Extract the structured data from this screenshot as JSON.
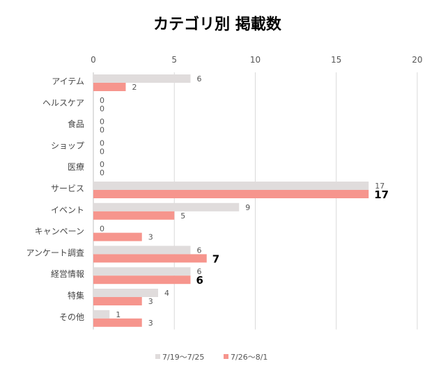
{
  "chart_data": {
    "type": "bar",
    "orientation": "horizontal",
    "title": "カテゴリ別 掲載数",
    "xlim": [
      0,
      20
    ],
    "xticks": [
      0,
      5,
      10,
      15,
      20
    ],
    "grid": true,
    "legend_position": "bottom",
    "categories": [
      "アイテム",
      "ヘルスケア",
      "食品",
      "ショップ",
      "医療",
      "サービス",
      "イベント",
      "キャンペーン",
      "アンケート調査",
      "経営情報",
      "特集",
      "その他"
    ],
    "series": [
      {
        "name": "7/19〜7/25",
        "color": "#e0dcdc",
        "values": [
          6,
          0,
          0,
          0,
          0,
          17,
          9,
          0,
          6,
          6,
          4,
          1
        ]
      },
      {
        "name": "7/26〜8/1",
        "color": "#f6958d",
        "values": [
          2,
          0,
          0,
          0,
          0,
          17,
          5,
          3,
          7,
          6,
          3,
          3
        ],
        "emphasized_labels": [
          5,
          8,
          9
        ]
      }
    ]
  }
}
